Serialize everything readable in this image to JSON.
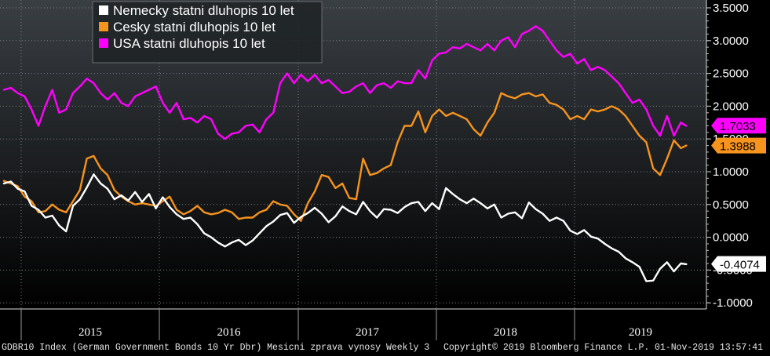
{
  "chart_data": {
    "type": "line",
    "x_categories": [
      "2015",
      "2016",
      "2017",
      "2018",
      "2019"
    ],
    "y_ticks": [
      "3.5000",
      "3.0000",
      "2.5000",
      "2.0000",
      "1.5000",
      "1.0000",
      "0.5000",
      "0.0000",
      "-0.5000",
      "-1.0000"
    ],
    "ylim": [
      -1.08,
      3.58
    ],
    "xlim": [
      0,
      100
    ],
    "grid": true,
    "legend_position": "top-left",
    "series": [
      {
        "name": "Nemecky statni dluhopis 10 let",
        "color": "#ffffff",
        "last_value_label": "-0.4074",
        "last_value": -0.4074,
        "points": [
          [
            0,
            0.82
          ],
          [
            1,
            0.85
          ],
          [
            2,
            0.74
          ],
          [
            3,
            0.7
          ],
          [
            4,
            0.48
          ],
          [
            5,
            0.42
          ],
          [
            6,
            0.3
          ],
          [
            7,
            0.33
          ],
          [
            8,
            0.18
          ],
          [
            9,
            0.09
          ],
          [
            10,
            0.48
          ],
          [
            11,
            0.58
          ],
          [
            12,
            0.76
          ],
          [
            13,
            0.96
          ],
          [
            14,
            0.82
          ],
          [
            15,
            0.74
          ],
          [
            16,
            0.58
          ],
          [
            17,
            0.64
          ],
          [
            18,
            0.56
          ],
          [
            19,
            0.69
          ],
          [
            20,
            0.54
          ],
          [
            21,
            0.66
          ],
          [
            22,
            0.44
          ],
          [
            23,
            0.61
          ],
          [
            24,
            0.46
          ],
          [
            25,
            0.35
          ],
          [
            26,
            0.28
          ],
          [
            27,
            0.3
          ],
          [
            28,
            0.2
          ],
          [
            29,
            0.06
          ],
          [
            30,
            0.0
          ],
          [
            31,
            -0.08
          ],
          [
            32,
            -0.14
          ],
          [
            33,
            -0.08
          ],
          [
            34,
            -0.04
          ],
          [
            35,
            -0.12
          ],
          [
            36,
            -0.05
          ],
          [
            37,
            0.06
          ],
          [
            38,
            0.17
          ],
          [
            39,
            0.24
          ],
          [
            40,
            0.34
          ],
          [
            41,
            0.37
          ],
          [
            42,
            0.22
          ],
          [
            43,
            0.31
          ],
          [
            44,
            0.37
          ],
          [
            45,
            0.45
          ],
          [
            46,
            0.36
          ],
          [
            47,
            0.23
          ],
          [
            48,
            0.32
          ],
          [
            49,
            0.47
          ],
          [
            50,
            0.4
          ],
          [
            51,
            0.35
          ],
          [
            52,
            0.54
          ],
          [
            53,
            0.4
          ],
          [
            54,
            0.3
          ],
          [
            55,
            0.43
          ],
          [
            56,
            0.42
          ],
          [
            57,
            0.37
          ],
          [
            58,
            0.46
          ],
          [
            59,
            0.52
          ],
          [
            60,
            0.54
          ],
          [
            61,
            0.4
          ],
          [
            62,
            0.52
          ],
          [
            63,
            0.43
          ],
          [
            64,
            0.75
          ],
          [
            65,
            0.66
          ],
          [
            66,
            0.58
          ],
          [
            67,
            0.52
          ],
          [
            68,
            0.59
          ],
          [
            69,
            0.52
          ],
          [
            70,
            0.44
          ],
          [
            71,
            0.5
          ],
          [
            72,
            0.3
          ],
          [
            73,
            0.36
          ],
          [
            74,
            0.38
          ],
          [
            75,
            0.29
          ],
          [
            76,
            0.53
          ],
          [
            77,
            0.43
          ],
          [
            78,
            0.36
          ],
          [
            79,
            0.25
          ],
          [
            80,
            0.3
          ],
          [
            81,
            0.25
          ],
          [
            82,
            0.1
          ],
          [
            83,
            0.05
          ],
          [
            84,
            0.11
          ],
          [
            85,
            0.01
          ],
          [
            86,
            -0.02
          ],
          [
            87,
            -0.1
          ],
          [
            88,
            -0.17
          ],
          [
            89,
            -0.22
          ],
          [
            90,
            -0.32
          ],
          [
            91,
            -0.38
          ],
          [
            92,
            -0.45
          ],
          [
            93,
            -0.67
          ],
          [
            94,
            -0.66
          ],
          [
            95,
            -0.48
          ],
          [
            96,
            -0.38
          ],
          [
            97,
            -0.52
          ],
          [
            98,
            -0.4
          ],
          [
            98.8,
            -0.41
          ]
        ]
      },
      {
        "name": "Cesky statni dluhopis 10 let",
        "color": "#f7941d",
        "last_value_label": "1.3988",
        "last_value": 1.3988,
        "points": [
          [
            0,
            0.86
          ],
          [
            1,
            0.82
          ],
          [
            2,
            0.78
          ],
          [
            3,
            0.62
          ],
          [
            4,
            0.55
          ],
          [
            5,
            0.38
          ],
          [
            6,
            0.4
          ],
          [
            7,
            0.5
          ],
          [
            8,
            0.42
          ],
          [
            9,
            0.38
          ],
          [
            10,
            0.55
          ],
          [
            11,
            0.72
          ],
          [
            12,
            1.2
          ],
          [
            13,
            1.24
          ],
          [
            14,
            1.05
          ],
          [
            15,
            0.95
          ],
          [
            16,
            0.72
          ],
          [
            17,
            0.62
          ],
          [
            18,
            0.55
          ],
          [
            19,
            0.5
          ],
          [
            20,
            0.52
          ],
          [
            21,
            0.5
          ],
          [
            22,
            0.48
          ],
          [
            23,
            0.55
          ],
          [
            24,
            0.62
          ],
          [
            25,
            0.42
          ],
          [
            26,
            0.35
          ],
          [
            27,
            0.4
          ],
          [
            28,
            0.48
          ],
          [
            29,
            0.38
          ],
          [
            30,
            0.35
          ],
          [
            31,
            0.37
          ],
          [
            32,
            0.42
          ],
          [
            33,
            0.38
          ],
          [
            34,
            0.28
          ],
          [
            35,
            0.3
          ],
          [
            36,
            0.3
          ],
          [
            37,
            0.38
          ],
          [
            38,
            0.42
          ],
          [
            39,
            0.55
          ],
          [
            40,
            0.5
          ],
          [
            41,
            0.48
          ],
          [
            42,
            0.35
          ],
          [
            43,
            0.25
          ],
          [
            44,
            0.52
          ],
          [
            45,
            0.7
          ],
          [
            46,
            0.95
          ],
          [
            47,
            0.92
          ],
          [
            48,
            0.75
          ],
          [
            49,
            0.82
          ],
          [
            50,
            0.6
          ],
          [
            51,
            0.58
          ],
          [
            52,
            1.2
          ],
          [
            53,
            0.95
          ],
          [
            54,
            0.98
          ],
          [
            55,
            1.05
          ],
          [
            56,
            1.1
          ],
          [
            57,
            1.45
          ],
          [
            58,
            1.7
          ],
          [
            59,
            1.7
          ],
          [
            60,
            1.92
          ],
          [
            61,
            1.6
          ],
          [
            62,
            1.85
          ],
          [
            63,
            1.95
          ],
          [
            64,
            1.85
          ],
          [
            65,
            1.9
          ],
          [
            66,
            1.85
          ],
          [
            67,
            1.8
          ],
          [
            68,
            1.65
          ],
          [
            69,
            1.55
          ],
          [
            70,
            1.75
          ],
          [
            71,
            1.9
          ],
          [
            72,
            2.2
          ],
          [
            73,
            2.15
          ],
          [
            74,
            2.12
          ],
          [
            75,
            2.18
          ],
          [
            76,
            2.2
          ],
          [
            77,
            2.15
          ],
          [
            78,
            2.18
          ],
          [
            79,
            2.05
          ],
          [
            80,
            2.02
          ],
          [
            81,
            1.95
          ],
          [
            82,
            1.8
          ],
          [
            83,
            1.85
          ],
          [
            84,
            1.8
          ],
          [
            85,
            1.95
          ],
          [
            86,
            1.92
          ],
          [
            87,
            1.95
          ],
          [
            88,
            2.0
          ],
          [
            89,
            1.95
          ],
          [
            90,
            1.85
          ],
          [
            91,
            1.7
          ],
          [
            92,
            1.55
          ],
          [
            93,
            1.45
          ],
          [
            94,
            1.05
          ],
          [
            95,
            0.95
          ],
          [
            96,
            1.2
          ],
          [
            97,
            1.48
          ],
          [
            98,
            1.36
          ],
          [
            98.8,
            1.4
          ]
        ]
      },
      {
        "name": "USA statni dluhopis 10 let",
        "color": "#ff00ff",
        "last_value_label": "1.7033",
        "last_value": 1.7033,
        "points": [
          [
            0,
            2.25
          ],
          [
            1,
            2.28
          ],
          [
            2,
            2.2
          ],
          [
            3,
            2.15
          ],
          [
            4,
            1.95
          ],
          [
            5,
            1.7
          ],
          [
            6,
            2.0
          ],
          [
            7,
            2.25
          ],
          [
            8,
            1.9
          ],
          [
            9,
            1.95
          ],
          [
            10,
            2.2
          ],
          [
            11,
            2.3
          ],
          [
            12,
            2.42
          ],
          [
            13,
            2.35
          ],
          [
            14,
            2.2
          ],
          [
            15,
            2.1
          ],
          [
            16,
            2.2
          ],
          [
            17,
            2.05
          ],
          [
            18,
            2.0
          ],
          [
            19,
            2.15
          ],
          [
            20,
            2.2
          ],
          [
            21,
            2.25
          ],
          [
            22,
            2.3
          ],
          [
            23,
            2.05
          ],
          [
            24,
            1.9
          ],
          [
            25,
            2.05
          ],
          [
            26,
            1.8
          ],
          [
            27,
            1.82
          ],
          [
            28,
            1.75
          ],
          [
            29,
            1.85
          ],
          [
            30,
            1.8
          ],
          [
            31,
            1.58
          ],
          [
            32,
            1.5
          ],
          [
            33,
            1.58
          ],
          [
            34,
            1.6
          ],
          [
            35,
            1.7
          ],
          [
            36,
            1.72
          ],
          [
            37,
            1.6
          ],
          [
            38,
            1.8
          ],
          [
            39,
            1.9
          ],
          [
            40,
            2.35
          ],
          [
            41,
            2.5
          ],
          [
            42,
            2.35
          ],
          [
            43,
            2.48
          ],
          [
            44,
            2.38
          ],
          [
            45,
            2.48
          ],
          [
            46,
            2.35
          ],
          [
            47,
            2.4
          ],
          [
            48,
            2.3
          ],
          [
            49,
            2.2
          ],
          [
            50,
            2.22
          ],
          [
            51,
            2.3
          ],
          [
            52,
            2.35
          ],
          [
            53,
            2.2
          ],
          [
            54,
            2.32
          ],
          [
            55,
            2.35
          ],
          [
            56,
            2.28
          ],
          [
            57,
            2.38
          ],
          [
            58,
            2.35
          ],
          [
            59,
            2.35
          ],
          [
            60,
            2.55
          ],
          [
            61,
            2.42
          ],
          [
            62,
            2.7
          ],
          [
            63,
            2.8
          ],
          [
            64,
            2.82
          ],
          [
            65,
            2.9
          ],
          [
            66,
            2.88
          ],
          [
            67,
            2.95
          ],
          [
            68,
            2.9
          ],
          [
            69,
            2.85
          ],
          [
            70,
            2.95
          ],
          [
            71,
            2.85
          ],
          [
            72,
            3.0
          ],
          [
            73,
            3.05
          ],
          [
            74,
            2.9
          ],
          [
            75,
            3.1
          ],
          [
            76,
            3.15
          ],
          [
            77,
            3.22
          ],
          [
            78,
            3.15
          ],
          [
            79,
            3.0
          ],
          [
            80,
            2.85
          ],
          [
            81,
            2.75
          ],
          [
            82,
            2.8
          ],
          [
            83,
            2.65
          ],
          [
            84,
            2.72
          ],
          [
            85,
            2.55
          ],
          [
            86,
            2.6
          ],
          [
            87,
            2.55
          ],
          [
            88,
            2.45
          ],
          [
            89,
            2.35
          ],
          [
            90,
            2.2
          ],
          [
            91,
            2.05
          ],
          [
            92,
            2.1
          ],
          [
            93,
            1.95
          ],
          [
            94,
            1.7
          ],
          [
            95,
            1.55
          ],
          [
            96,
            1.85
          ],
          [
            97,
            1.55
          ],
          [
            98,
            1.75
          ],
          [
            98.8,
            1.7
          ]
        ]
      }
    ]
  },
  "footer": {
    "left": "GDBR10 Index (German Government Bonds 10 Yr Dbr) Mesicni zprava vynosy  Weekly 3",
    "center": "Copyright© 2019 Bloomberg Finance L.P.",
    "right": "01-Nov-2019 13:57:41"
  }
}
